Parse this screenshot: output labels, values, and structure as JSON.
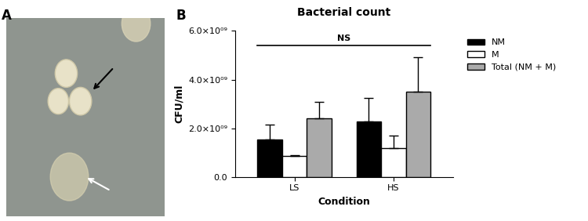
{
  "panel_labels": [
    "A",
    "B"
  ],
  "chart_data": {
    "type": "bar",
    "title": "Bacterial count",
    "x_label": "Condition",
    "y_label": "CFU/ml",
    "categories": [
      "LS",
      "HS"
    ],
    "series": [
      {
        "name": "NM",
        "color": "#000000",
        "values": [
          1550000000,
          2280000000
        ],
        "errors": [
          600000000,
          950000000
        ]
      },
      {
        "name": "M",
        "color": "#ffffff",
        "values": [
          850000000,
          1180000000
        ],
        "errors": [
          50000000,
          500000000
        ]
      },
      {
        "name": "Total (NM + M)",
        "color": "#aaaaaa",
        "values": [
          2420000000,
          3500000000
        ],
        "errors": [
          650000000,
          1420000000
        ]
      }
    ],
    "ylim": [
      0,
      6000000000
    ],
    "yticks": [
      {
        "value": 0,
        "label": "0.0"
      },
      {
        "value": 2000000000,
        "label": "2.0×10⁰⁹"
      },
      {
        "value": 4000000000,
        "label": "4.0×10⁰⁹"
      },
      {
        "value": 6000000000,
        "label": "6.0×10⁰⁹"
      }
    ],
    "annotation": "NS",
    "legend": "upper left",
    "grid": false
  }
}
